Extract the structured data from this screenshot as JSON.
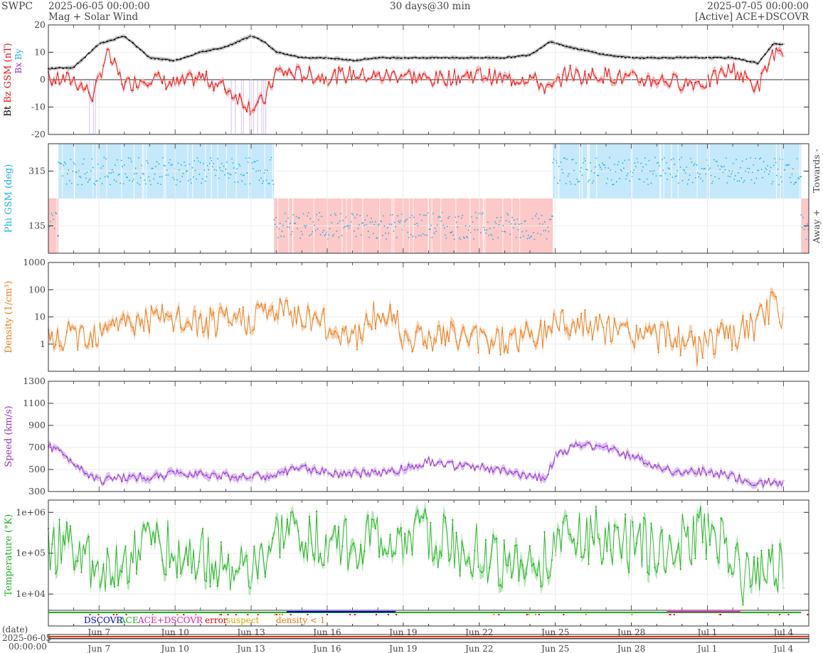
{
  "header": {
    "org": "SWPC",
    "start": "2025-06-05 00:00:00",
    "subtitle": "Mag + Solar Wind",
    "span": "30 days@30 min",
    "end": "2025-07-05 00:00:00",
    "source": "[Active] ACE+DSCOVR"
  },
  "colors": {
    "bt": "#000000",
    "bz": "#ee1111",
    "bz_fill": "#f6a8a8",
    "bz_neg_band": "#c9b6e8",
    "by": "#19b3e6",
    "bx": "#9933cc",
    "phi_towards": "#c5e8fa",
    "phi_away": "#fcc8c8",
    "phi_pts": "#19aee0",
    "density": "#ef7b1a",
    "density_fill": "#f8c59c",
    "speed": "#9933cc",
    "speed_fill": "#d6b5ee",
    "temperature": "#1fb21f",
    "temperature_fill": "#a6e3a6",
    "dscovr": "#0000cc",
    "ace": "#22aa22",
    "ace_dscovr": "#dd22aa",
    "error": "#cc0000",
    "suspect": "#ccaa00",
    "density_lt1": "#ee7711"
  },
  "axes": {
    "x_ticks": [
      "Jun 7",
      "Jun 10",
      "Jun 13",
      "Jun 16",
      "Jun 19",
      "Jun 22",
      "Jun 25",
      "Jun 28",
      "Jul 1",
      "Jul 4"
    ],
    "x_tick_days": [
      2,
      5,
      8,
      11,
      14,
      17,
      20,
      23,
      26,
      29
    ],
    "x_range_days": [
      0,
      30
    ]
  },
  "chart_data": [
    {
      "type": "line",
      "panel": "mag",
      "ylabel_parts": [
        "Bt",
        "Bz GSM (nT)",
        "Bx",
        "By"
      ],
      "ylim": [
        -20,
        20
      ],
      "yticks": [
        -20,
        -10,
        0,
        10,
        20
      ],
      "series": [
        {
          "name": "Bt",
          "x": [
            0,
            1,
            2,
            3,
            4,
            5,
            6,
            7,
            8,
            8.5,
            9,
            10,
            11,
            12,
            13,
            14,
            15,
            16,
            17,
            18,
            19,
            19.8,
            20.5,
            21,
            22,
            23,
            24,
            25,
            26,
            27,
            28,
            28.6,
            29
          ],
          "values": [
            4,
            4.5,
            13,
            16,
            8,
            7,
            10,
            12,
            16,
            14,
            10,
            8,
            8,
            7,
            8,
            8,
            8,
            8,
            8,
            8,
            9,
            14,
            12,
            11,
            9,
            8,
            8,
            8,
            8,
            8,
            6,
            13,
            13
          ]
        },
        {
          "name": "Bz GSM",
          "x": [
            0,
            1,
            1.8,
            2.3,
            3,
            4,
            5,
            6,
            7,
            8,
            8.5,
            9,
            10,
            11,
            12,
            13,
            14,
            15,
            16,
            17,
            18,
            19,
            19.8,
            20.5,
            21,
            22,
            23,
            24,
            25,
            26,
            27,
            28,
            28.6,
            29
          ],
          "values": [
            0,
            0,
            -6,
            10,
            -2,
            1,
            -2,
            1,
            -3,
            -10,
            -8,
            3,
            2,
            1,
            2,
            1,
            2,
            0,
            1,
            2,
            0,
            1,
            -4,
            3,
            1,
            2,
            0,
            0,
            -1,
            -1,
            4,
            -3,
            10,
            7
          ]
        }
      ]
    },
    {
      "type": "scatter",
      "panel": "phi",
      "ylabel": "Phi GSM (deg)",
      "right_labels": [
        "Towards -",
        "Away +"
      ],
      "ylim": [
        45,
        405
      ],
      "yticks": [
        135,
        315
      ],
      "series": [
        {
          "name": "towards",
          "x": [
            0.4,
            2,
            4,
            6,
            8
          ],
          "values": [
            315,
            315,
            315,
            315,
            315
          ]
        },
        {
          "name": "away",
          "x": [
            9,
            11,
            13,
            15,
            17,
            19.5
          ],
          "values": [
            135,
            135,
            135,
            135,
            135,
            135
          ]
        },
        {
          "name": "towards",
          "x": [
            20.5,
            22,
            24,
            26,
            28
          ],
          "values": [
            315,
            315,
            315,
            315,
            315
          ]
        }
      ],
      "towards_intervals": [
        [
          0.4,
          8.9
        ],
        [
          19.9,
          29.7
        ]
      ],
      "away_intervals": [
        [
          0,
          0.4
        ],
        [
          8.9,
          19.9
        ],
        [
          29.7,
          30
        ]
      ]
    },
    {
      "type": "area",
      "panel": "density",
      "ylabel": "Density (1/cm³)",
      "yscale": "log",
      "ylim": [
        0.1,
        1000
      ],
      "yticks": [
        1,
        10,
        100,
        1000
      ],
      "ytick_labels": [
        "1",
        "10",
        "100",
        "1000"
      ],
      "series": [
        {
          "name": "Density",
          "x": [
            0,
            0.5,
            1,
            2,
            2.5,
            3,
            4,
            5,
            6,
            7,
            8,
            8.5,
            9,
            10,
            10.6,
            11,
            12,
            12.4,
            12.8,
            13,
            13.6,
            14,
            15,
            16,
            17,
            18,
            19,
            19.5,
            20,
            21,
            22,
            23,
            24,
            25,
            25.6,
            26,
            27,
            28,
            28.6,
            29
          ],
          "values": [
            1.2,
            1.5,
            2,
            3,
            10,
            5,
            8,
            7,
            5,
            6,
            9,
            15,
            15,
            11,
            10,
            3,
            3,
            1,
            10,
            10,
            12,
            2,
            2,
            2,
            1.5,
            1.5,
            2,
            2,
            8,
            5,
            3,
            2.5,
            2,
            1.5,
            0.5,
            1.5,
            1.5,
            5,
            25,
            12
          ]
        }
      ]
    },
    {
      "type": "area",
      "panel": "speed",
      "ylabel": "Speed (km/s)",
      "ylim": [
        300,
        1300
      ],
      "yticks": [
        300,
        500,
        700,
        900,
        1100,
        1300
      ],
      "series": [
        {
          "name": "Speed",
          "x": [
            0,
            0.5,
            1,
            2,
            3,
            4,
            5,
            6,
            7,
            8,
            9,
            10,
            11,
            12,
            13,
            14,
            15,
            16,
            17,
            18,
            19,
            19.6,
            20,
            21,
            22,
            23,
            24,
            25,
            26,
            27,
            28,
            28.5,
            29
          ],
          "values": [
            720,
            650,
            560,
            400,
            430,
            430,
            460,
            470,
            440,
            430,
            450,
            520,
            470,
            460,
            470,
            500,
            580,
            530,
            520,
            480,
            440,
            430,
            620,
            730,
            700,
            620,
            530,
            470,
            480,
            430,
            370,
            380,
            390
          ]
        }
      ]
    },
    {
      "type": "area",
      "panel": "temperature",
      "ylabel": "Temperature (°K)",
      "yscale": "log",
      "ylim": [
        4000,
        2000000
      ],
      "yticks": [
        10000,
        100000,
        1000000
      ],
      "ytick_labels": [
        "1e+04",
        "1e+05",
        "1e+06"
      ],
      "series": [
        {
          "name": "Temperature",
          "x": [
            0,
            1,
            2,
            3,
            4,
            5,
            6,
            7,
            8,
            8.5,
            9,
            10,
            11,
            12,
            13,
            14,
            15,
            16,
            17,
            18,
            19,
            20,
            20.4,
            21,
            22,
            23,
            24,
            25,
            26,
            27,
            27.5,
            28,
            29
          ],
          "values": [
            150000,
            150000,
            30000,
            60000,
            200000,
            100000,
            80000,
            60000,
            20000,
            60000,
            200000,
            300000,
            150000,
            200000,
            200000,
            200000,
            250000,
            150000,
            100000,
            60000,
            40000,
            100000,
            500000,
            300000,
            250000,
            150000,
            150000,
            200000,
            300000,
            60000,
            20000,
            30000,
            40000
          ]
        }
      ]
    }
  ],
  "legend": {
    "items": [
      "DSCOVR",
      "ACE",
      "ACE+DSCOVR",
      "error",
      "suspect",
      "density < 1"
    ]
  },
  "footer": {
    "date_label": "(date)",
    "date_value": "2025-06-05",
    "time_value": "00:00:00"
  }
}
